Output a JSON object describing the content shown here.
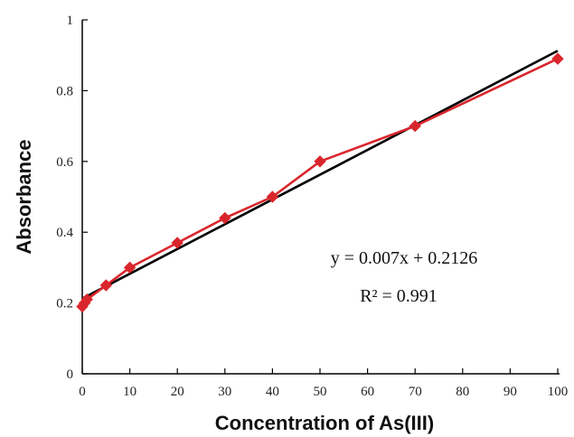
{
  "chart_data": {
    "type": "scatter",
    "xlabel": "Concentration of As(III)",
    "ylabel": "Absorbance",
    "xlim": [
      0,
      100
    ],
    "ylim": [
      0,
      1
    ],
    "x_ticks": [
      0,
      10,
      20,
      30,
      40,
      50,
      60,
      70,
      80,
      90,
      100
    ],
    "y_ticks": [
      0,
      0.2,
      0.4,
      0.6,
      0.8,
      1
    ],
    "x_tick_labels": [
      "0",
      "10",
      "20",
      "30",
      "40",
      "50",
      "60",
      "70",
      "80",
      "90",
      "100"
    ],
    "y_tick_labels": [
      "0",
      "0.2",
      "0.4",
      "0.6",
      "0.8",
      "1"
    ],
    "grid": false,
    "series": [
      {
        "x": [
          0,
          0.5,
          1,
          5,
          10,
          20,
          30,
          40,
          50,
          70,
          100
        ],
        "y": [
          0.19,
          0.2,
          0.21,
          0.25,
          0.3,
          0.37,
          0.44,
          0.5,
          0.6,
          0.7,
          0.89
        ],
        "color": "#d9262c",
        "marker": "diamond",
        "connected": true
      }
    ],
    "fit": {
      "slope": 0.007,
      "intercept": 0.2126,
      "color": "#000000"
    },
    "annotations": {
      "equation": "y = 0.007x + 0.2126",
      "r_squared": "R² = 0.991"
    }
  }
}
